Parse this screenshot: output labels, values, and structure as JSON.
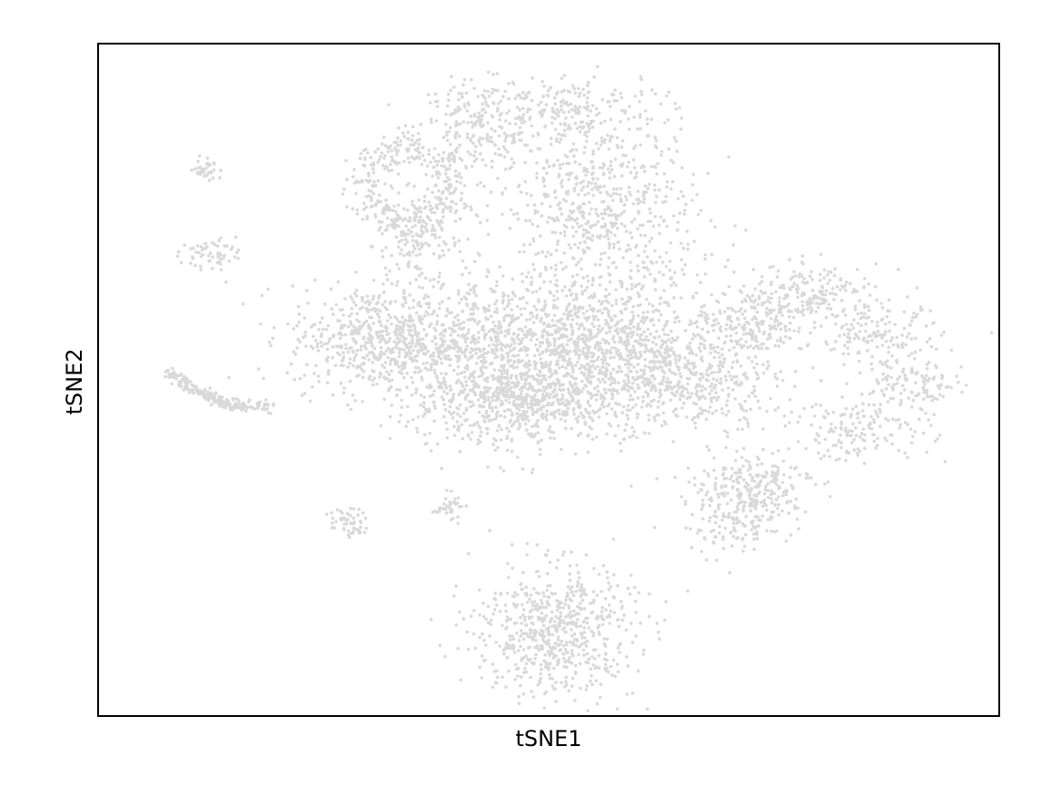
{
  "chart_data": {
    "type": "scatter",
    "title": "",
    "xlabel": "tSNE1",
    "ylabel": "tSNE2",
    "x_ticks": [],
    "y_ticks": [],
    "grid": false,
    "legend": "none",
    "point_color": "#d9d9d9",
    "xlim": [
      -45,
      45
    ],
    "ylim": [
      -40,
      40
    ],
    "clusters": [
      {
        "center": [
          -14,
          23
        ],
        "spread": [
          4.5,
          4.5
        ],
        "count": 360,
        "shape": "ring"
      },
      {
        "center": [
          -13,
          16
        ],
        "spread": [
          2.5,
          2.5
        ],
        "count": 110
      },
      {
        "center": [
          -7,
          30
        ],
        "spread": [
          3.5,
          3.0
        ],
        "count": 220
      },
      {
        "center": [
          2,
          32
        ],
        "spread": [
          5.0,
          2.5
        ],
        "count": 200
      },
      {
        "center": [
          5,
          20
        ],
        "spread": [
          5.5,
          6.0
        ],
        "count": 600
      },
      {
        "center": [
          -17,
          5
        ],
        "spread": [
          5.0,
          3.5
        ],
        "count": 550
      },
      {
        "center": [
          -5,
          3
        ],
        "spread": [
          6.0,
          5.0
        ],
        "count": 900
      },
      {
        "center": [
          6,
          4
        ],
        "spread": [
          5.5,
          5.0
        ],
        "count": 800
      },
      {
        "center": [
          15,
          0
        ],
        "spread": [
          4.5,
          3.0
        ],
        "count": 350
      },
      {
        "center": [
          -3,
          -3
        ],
        "spread": [
          6.0,
          2.5
        ],
        "count": 450
      },
      {
        "center": [
          26,
          10
        ],
        "spread": [
          4.0,
          2.0
        ],
        "count": 220
      },
      {
        "center": [
          33,
          5
        ],
        "spread": [
          3.5,
          2.0
        ],
        "count": 150
      },
      {
        "center": [
          36,
          -1
        ],
        "spread": [
          3.0,
          2.0
        ],
        "count": 120
      },
      {
        "center": [
          31,
          -6
        ],
        "spread": [
          4.0,
          2.0
        ],
        "count": 150
      },
      {
        "center": [
          19,
          -15
        ],
        "spread": [
          3.0,
          3.0
        ],
        "count": 260
      },
      {
        "center": [
          22,
          -12
        ],
        "spread": [
          2.5,
          1.8
        ],
        "count": 100
      },
      {
        "center": [
          0.5,
          -30
        ],
        "spread": [
          4.5,
          4.5
        ],
        "count": 650
      },
      {
        "center": [
          -20,
          -17
        ],
        "spread": [
          1.0,
          1.0
        ],
        "count": 55
      },
      {
        "center": [
          -10,
          -15
        ],
        "spread": [
          0.8,
          0.8
        ],
        "count": 35
      },
      {
        "center": [
          -34,
          15
        ],
        "spread": [
          1.5,
          1.0
        ],
        "count": 60
      },
      {
        "center": [
          -34,
          25
        ],
        "spread": [
          0.8,
          0.8
        ],
        "count": 35
      },
      {
        "center": [
          -33,
          -1
        ],
        "spread": [
          5.0,
          2.5
        ],
        "count": 200,
        "shape": "arc"
      },
      {
        "center": [
          20,
          6
        ],
        "spread": [
          3.0,
          2.0
        ],
        "count": 180
      }
    ]
  }
}
